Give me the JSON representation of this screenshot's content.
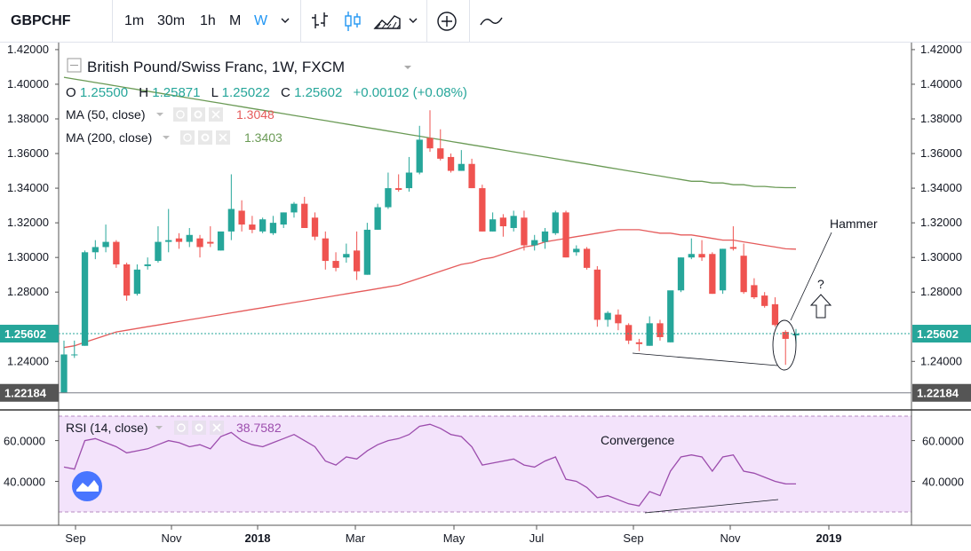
{
  "toolbar": {
    "symbol": "GBPCHF",
    "intervals": [
      "1m",
      "30m",
      "1h",
      "M",
      "W"
    ],
    "active_interval": "W",
    "icons": [
      "chevron-down-icon",
      "bar-style-icon",
      "candle-style-icon",
      "area-style-icon",
      "chevron-down-icon",
      "add-indicator-icon",
      "compare-line-icon"
    ]
  },
  "legend": {
    "title": "British Pound/Swiss Franc, 1W, FXCM",
    "o_label": "O",
    "o": "1.25500",
    "h_label": "H",
    "h": "1.25871",
    "l_label": "L",
    "l": "1.25022",
    "c_label": "C",
    "c": "1.25602",
    "change": "+0.00102 (+0.08%)",
    "ma50_label": "MA (50, close)",
    "ma50_value": "1.3048",
    "ma200_label": "MA (200, close)",
    "ma200_value": "1.3403",
    "rsi_label": "RSI (14, close)",
    "rsi_value": "38.7582"
  },
  "annotations": {
    "hammer": "Hammer",
    "question": "?",
    "convergence": "Convergence"
  },
  "colors": {
    "up": "#26a69a",
    "down": "#ef5350",
    "ma50": "#e55b5b",
    "ma200": "#6a9a55",
    "rsi": "#9c4dad",
    "rsi_band": "#f3e3fb",
    "price_line": "#26a69a",
    "low_line": "#787b86"
  },
  "chart_data": {
    "type": "candlestick",
    "x_tick_labels": [
      "Sep",
      "Nov",
      "2018",
      "Mar",
      "May",
      "Jul",
      "Sep",
      "Nov",
      "2019"
    ],
    "price_axis": {
      "ticks": [
        "1.42000",
        "1.40000",
        "1.38000",
        "1.36000",
        "1.34000",
        "1.32000",
        "1.30000",
        "1.28000",
        "1.24000"
      ],
      "min": 1.213,
      "max": 1.422
    },
    "last_price_label": "1.25602",
    "last_price": 1.25602,
    "low_marker_label": "1.22184",
    "low_marker": 1.22184,
    "candles": [
      [
        1.222,
        1.252,
        1.2218,
        1.244
      ],
      [
        1.244,
        1.252,
        1.242,
        1.244
      ],
      [
        1.249,
        1.304,
        1.249,
        1.303
      ],
      [
        1.303,
        1.31,
        1.299,
        1.306
      ],
      [
        1.306,
        1.319,
        1.303,
        1.309
      ],
      [
        1.309,
        1.31,
        1.294,
        1.296
      ],
      [
        1.296,
        1.297,
        1.275,
        1.278
      ],
      [
        1.279,
        1.296,
        1.278,
        1.293
      ],
      [
        1.295,
        1.3,
        1.293,
        1.296
      ],
      [
        1.298,
        1.318,
        1.297,
        1.309
      ],
      [
        1.309,
        1.328,
        1.303,
        1.31
      ],
      [
        1.311,
        1.314,
        1.305,
        1.309
      ],
      [
        1.309,
        1.317,
        1.306,
        1.313
      ],
      [
        1.311,
        1.313,
        1.3,
        1.306
      ],
      [
        1.309,
        1.318,
        1.306,
        1.308
      ],
      [
        1.304,
        1.314,
        1.304,
        1.315
      ],
      [
        1.315,
        1.348,
        1.31,
        1.328
      ],
      [
        1.327,
        1.333,
        1.315,
        1.319
      ],
      [
        1.319,
        1.324,
        1.314,
        1.316
      ],
      [
        1.315,
        1.323,
        1.314,
        1.322
      ],
      [
        1.314,
        1.324,
        1.313,
        1.32
      ],
      [
        1.319,
        1.326,
        1.317,
        1.326
      ],
      [
        1.326,
        1.332,
        1.323,
        1.331
      ],
      [
        1.331,
        1.335,
        1.317,
        1.317
      ],
      [
        1.323,
        1.326,
        1.31,
        1.312
      ],
      [
        1.311,
        1.315,
        1.293,
        1.298
      ],
      [
        1.298,
        1.303,
        1.292,
        1.294
      ],
      [
        1.3,
        1.308,
        1.297,
        1.302
      ],
      [
        1.304,
        1.315,
        1.287,
        1.292
      ],
      [
        1.29,
        1.32,
        1.29,
        1.316
      ],
      [
        1.316,
        1.331,
        1.316,
        1.329
      ],
      [
        1.329,
        1.349,
        1.328,
        1.34
      ],
      [
        1.34,
        1.348,
        1.338,
        1.339
      ],
      [
        1.34,
        1.358,
        1.338,
        1.349
      ],
      [
        1.349,
        1.376,
        1.348,
        1.368
      ],
      [
        1.369,
        1.385,
        1.361,
        1.363
      ],
      [
        1.363,
        1.374,
        1.356,
        1.357
      ],
      [
        1.358,
        1.36,
        1.349,
        1.35
      ],
      [
        1.35,
        1.362,
        1.35,
        1.354
      ],
      [
        1.354,
        1.357,
        1.34,
        1.34
      ],
      [
        1.34,
        1.342,
        1.315,
        1.315
      ],
      [
        1.315,
        1.326,
        1.315,
        1.322
      ],
      [
        1.323,
        1.325,
        1.312,
        1.318
      ],
      [
        1.317,
        1.327,
        1.315,
        1.324
      ],
      [
        1.323,
        1.327,
        1.304,
        1.307
      ],
      [
        1.307,
        1.313,
        1.304,
        1.31
      ],
      [
        1.309,
        1.317,
        1.305,
        1.315
      ],
      [
        1.314,
        1.327,
        1.313,
        1.326
      ],
      [
        1.326,
        1.327,
        1.3,
        1.3
      ],
      [
        1.303,
        1.307,
        1.301,
        1.305
      ],
      [
        1.305,
        1.306,
        1.293,
        1.294
      ],
      [
        1.293,
        1.295,
        1.26,
        1.264
      ],
      [
        1.264,
        1.269,
        1.26,
        1.268
      ],
      [
        1.267,
        1.27,
        1.258,
        1.262
      ],
      [
        1.261,
        1.262,
        1.25,
        1.252
      ],
      [
        1.251,
        1.253,
        1.246,
        1.25
      ],
      [
        1.249,
        1.266,
        1.249,
        1.262
      ],
      [
        1.262,
        1.264,
        1.252,
        1.254
      ],
      [
        1.251,
        1.28,
        1.251,
        1.281
      ],
      [
        1.281,
        1.3,
        1.28,
        1.3
      ],
      [
        1.3,
        1.311,
        1.299,
        1.302
      ],
      [
        1.302,
        1.31,
        1.298,
        1.3
      ],
      [
        1.302,
        1.303,
        1.279,
        1.279
      ],
      [
        1.281,
        1.305,
        1.279,
        1.305
      ],
      [
        1.306,
        1.318,
        1.304,
        1.305
      ],
      [
        1.301,
        1.308,
        1.279,
        1.28
      ],
      [
        1.284,
        1.288,
        1.276,
        1.277
      ],
      [
        1.278,
        1.28,
        1.271,
        1.272
      ],
      [
        1.273,
        1.277,
        1.26,
        1.261
      ],
      [
        1.257,
        1.258,
        1.238,
        1.253
      ],
      [
        1.255,
        1.2587,
        1.2502,
        1.256
      ]
    ],
    "ma50": [
      1.248,
      1.249,
      1.251,
      1.253,
      1.255,
      1.257,
      1.258,
      1.259,
      1.26,
      1.261,
      1.262,
      1.263,
      1.264,
      1.265,
      1.266,
      1.267,
      1.268,
      1.269,
      1.27,
      1.271,
      1.272,
      1.273,
      1.274,
      1.275,
      1.276,
      1.277,
      1.278,
      1.279,
      1.28,
      1.281,
      1.282,
      1.283,
      1.284,
      1.286,
      1.288,
      1.29,
      1.292,
      1.294,
      1.296,
      1.297,
      1.299,
      1.3,
      1.302,
      1.304,
      1.306,
      1.307,
      1.309,
      1.31,
      1.311,
      1.312,
      1.313,
      1.314,
      1.315,
      1.316,
      1.316,
      1.316,
      1.315,
      1.314,
      1.314,
      1.313,
      1.313,
      1.312,
      1.311,
      1.31,
      1.31,
      1.309,
      1.308,
      1.307,
      1.306,
      1.305,
      1.3048
    ],
    "ma200": [
      1.404,
      1.403,
      1.402,
      1.401,
      1.4,
      1.399,
      1.398,
      1.397,
      1.396,
      1.395,
      1.394,
      1.393,
      1.392,
      1.391,
      1.39,
      1.389,
      1.388,
      1.387,
      1.386,
      1.385,
      1.384,
      1.383,
      1.382,
      1.381,
      1.38,
      1.379,
      1.378,
      1.377,
      1.376,
      1.375,
      1.374,
      1.373,
      1.372,
      1.371,
      1.37,
      1.369,
      1.368,
      1.367,
      1.366,
      1.365,
      1.364,
      1.363,
      1.362,
      1.361,
      1.36,
      1.359,
      1.358,
      1.357,
      1.356,
      1.355,
      1.354,
      1.353,
      1.352,
      1.351,
      1.35,
      1.349,
      1.348,
      1.347,
      1.346,
      1.345,
      1.344,
      1.344,
      1.343,
      1.343,
      1.342,
      1.342,
      1.341,
      1.341,
      1.3405,
      1.3403,
      1.3403
    ],
    "rsi": {
      "axis_ticks": [
        "60.0000",
        "40.0000"
      ],
      "min": 25,
      "max": 72,
      "values": [
        47,
        46,
        60,
        61,
        59,
        57,
        54,
        55,
        56,
        58,
        60,
        59,
        57,
        58,
        56,
        62,
        64,
        60,
        58,
        57,
        59,
        61,
        63,
        60,
        57,
        50,
        48,
        52,
        51,
        55,
        58,
        60,
        61,
        63,
        67,
        68,
        66,
        63,
        62,
        57,
        48,
        49,
        50,
        51,
        48,
        47,
        50,
        52,
        41,
        40,
        37,
        32,
        33,
        31,
        29,
        28,
        35,
        33,
        45,
        52,
        53,
        52,
        45,
        52,
        53,
        45,
        44,
        42,
        40,
        38.8,
        38.76
      ]
    }
  }
}
